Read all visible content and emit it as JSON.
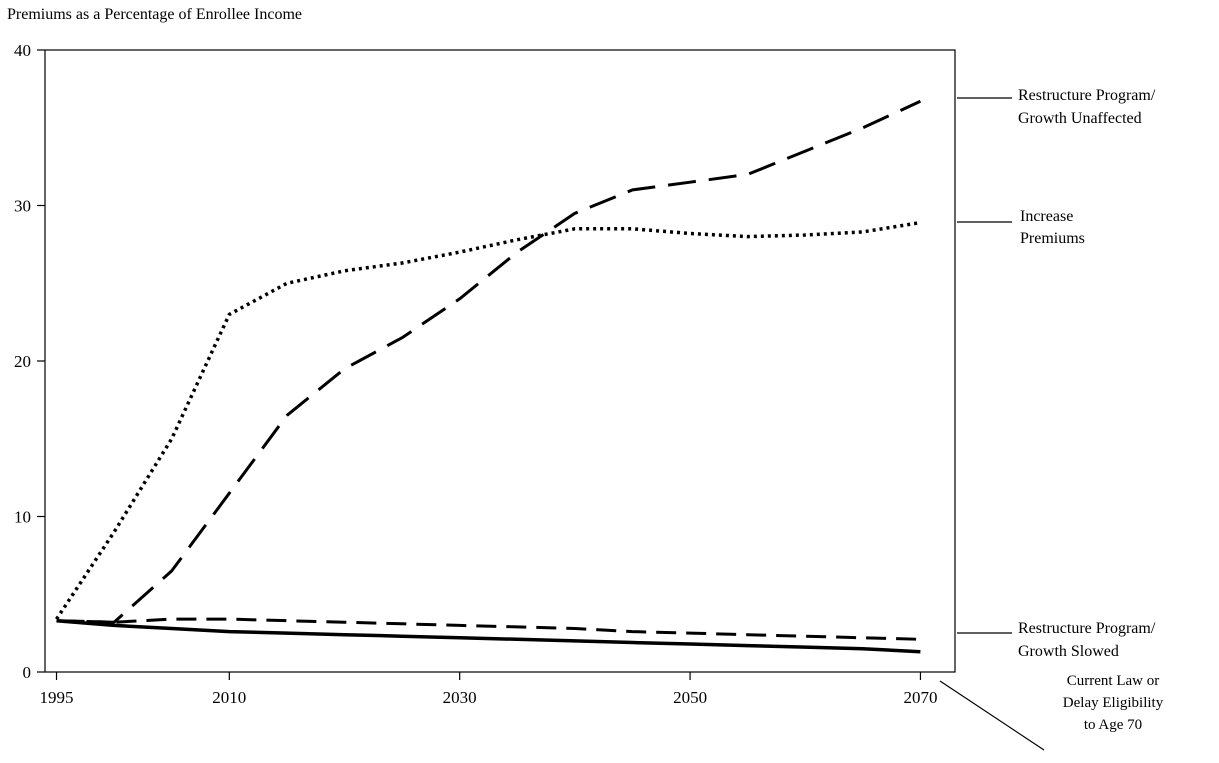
{
  "chart_data": {
    "type": "line",
    "title": "Premiums as a Percentage of Enrollee Income",
    "xlabel": "",
    "ylabel": "",
    "xlim": [
      1994,
      2073
    ],
    "ylim": [
      0,
      40
    ],
    "x_ticks": [
      1995,
      2010,
      2030,
      2050,
      2070
    ],
    "y_ticks": [
      0,
      10,
      20,
      30,
      40
    ],
    "grid": false,
    "series": [
      {
        "name": "Restructure Program/ Growth Unaffected",
        "label_lines": [
          "Restructure Program/",
          "Growth Unaffected"
        ],
        "style": "long-dash",
        "x": [
          1995,
          2000,
          2005,
          2010,
          2015,
          2020,
          2025,
          2030,
          2035,
          2040,
          2045,
          2050,
          2055,
          2060,
          2065,
          2070
        ],
        "y": [
          3.3,
          3.2,
          6.5,
          11.5,
          16.5,
          19.5,
          21.5,
          24.0,
          27.0,
          29.5,
          31.0,
          31.5,
          32.0,
          33.5,
          35.0,
          36.7
        ]
      },
      {
        "name": "Increase Premiums",
        "label_lines": [
          "Increase",
          "Premiums"
        ],
        "style": "dotted",
        "x": [
          1995,
          2000,
          2005,
          2010,
          2015,
          2020,
          2025,
          2030,
          2035,
          2040,
          2045,
          2050,
          2055,
          2060,
          2065,
          2070
        ],
        "y": [
          3.4,
          9.0,
          15.0,
          23.0,
          25.0,
          25.8,
          26.3,
          27.0,
          27.8,
          28.5,
          28.5,
          28.2,
          28.0,
          28.1,
          28.3,
          28.9
        ]
      },
      {
        "name": "Restructure Program/ Growth Slowed",
        "label_lines": [
          "Restructure Program/",
          "Growth Slowed"
        ],
        "style": "dashed",
        "x": [
          1995,
          2000,
          2005,
          2010,
          2015,
          2020,
          2025,
          2030,
          2035,
          2040,
          2045,
          2050,
          2055,
          2060,
          2065,
          2070
        ],
        "y": [
          3.3,
          3.2,
          3.4,
          3.4,
          3.3,
          3.2,
          3.1,
          3.0,
          2.9,
          2.8,
          2.6,
          2.5,
          2.4,
          2.3,
          2.2,
          2.1
        ]
      },
      {
        "name": "Current Law or Delay Eligibility to Age 70",
        "label_lines": [
          "Current Law or",
          "Delay Eligibility",
          "to Age 70"
        ],
        "style": "solid",
        "x": [
          1995,
          2000,
          2005,
          2010,
          2015,
          2020,
          2025,
          2030,
          2035,
          2040,
          2045,
          2050,
          2055,
          2060,
          2065,
          2070
        ],
        "y": [
          3.3,
          3.0,
          2.8,
          2.6,
          2.5,
          2.4,
          2.3,
          2.2,
          2.1,
          2.0,
          1.9,
          1.8,
          1.7,
          1.6,
          1.5,
          1.3
        ]
      }
    ]
  }
}
